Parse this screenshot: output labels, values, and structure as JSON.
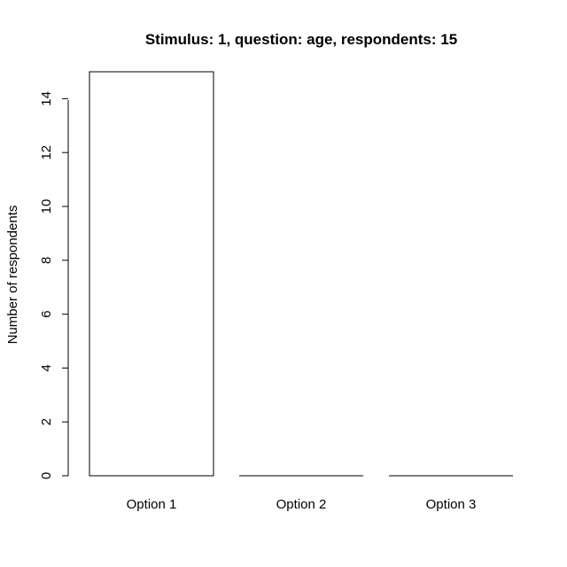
{
  "chart_data": {
    "type": "bar",
    "title": "Stimulus: 1, question: age, respondents: 15",
    "xlabel": "",
    "ylabel": "Number of respondents",
    "categories": [
      "Option 1",
      "Option 2",
      "Option 3"
    ],
    "values": [
      15,
      0,
      0
    ],
    "yticks": [
      0,
      2,
      4,
      6,
      8,
      10,
      12,
      14
    ],
    "ylim": [
      0,
      15
    ],
    "grid": false,
    "legend": "none",
    "bar_fill": "#ffffff",
    "bar_stroke": "#000000"
  }
}
